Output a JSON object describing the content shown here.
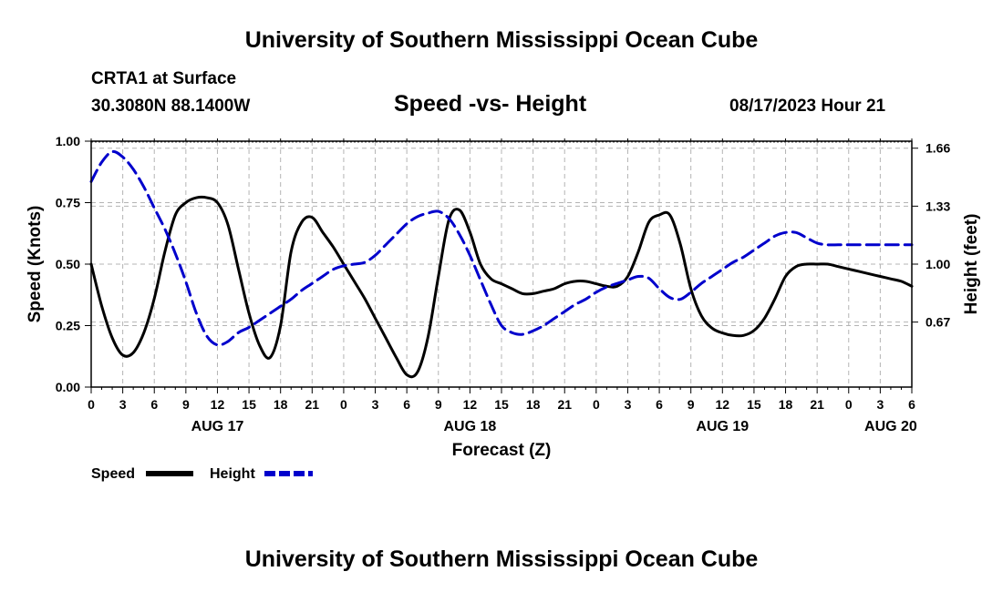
{
  "header": {
    "title": "University of Southern Mississippi Ocean Cube",
    "station": "CRTA1 at Surface",
    "coords": "30.3080N  88.1400W",
    "chart_title": "Speed -vs- Height",
    "datetime": "08/17/2023 Hour 21"
  },
  "footer": {
    "title": "University of Southern Mississippi Ocean Cube"
  },
  "legend": {
    "speed_label": "Speed",
    "height_label": "Height"
  },
  "colors": {
    "speed": "#000000",
    "height": "#0000cc",
    "grid": "#b4b4b4"
  },
  "chart_data": {
    "type": "line",
    "title": "Speed -vs- Height",
    "xlabel": "Forecast (Z)",
    "ylabel": "Speed (Knots)",
    "y2label": "Height (feet)",
    "x_range_hours": [
      0,
      78
    ],
    "x_ticks": [
      {
        "h": 0,
        "label": "0"
      },
      {
        "h": 3,
        "label": "3"
      },
      {
        "h": 6,
        "label": "6"
      },
      {
        "h": 9,
        "label": "9"
      },
      {
        "h": 12,
        "label": "12"
      },
      {
        "h": 15,
        "label": "15"
      },
      {
        "h": 18,
        "label": "18"
      },
      {
        "h": 21,
        "label": "21"
      },
      {
        "h": 24,
        "label": "0"
      },
      {
        "h": 27,
        "label": "3"
      },
      {
        "h": 30,
        "label": "6"
      },
      {
        "h": 33,
        "label": "9"
      },
      {
        "h": 36,
        "label": "12"
      },
      {
        "h": 39,
        "label": "15"
      },
      {
        "h": 42,
        "label": "18"
      },
      {
        "h": 45,
        "label": "21"
      },
      {
        "h": 48,
        "label": "0"
      },
      {
        "h": 51,
        "label": "3"
      },
      {
        "h": 54,
        "label": "6"
      },
      {
        "h": 57,
        "label": "9"
      },
      {
        "h": 60,
        "label": "12"
      },
      {
        "h": 63,
        "label": "15"
      },
      {
        "h": 66,
        "label": "18"
      },
      {
        "h": 69,
        "label": "21"
      },
      {
        "h": 72,
        "label": "0"
      },
      {
        "h": 75,
        "label": "3"
      },
      {
        "h": 78,
        "label": "6"
      }
    ],
    "date_labels": [
      {
        "h": 12,
        "label": "AUG 17"
      },
      {
        "h": 36,
        "label": "AUG 18"
      },
      {
        "h": 60,
        "label": "AUG 19"
      },
      {
        "h": 76,
        "label": "AUG 20"
      }
    ],
    "ylim": [
      0,
      1
    ],
    "y_ticks": [
      {
        "v": 0,
        "label": "0.00"
      },
      {
        "v": 0.25,
        "label": "0.25"
      },
      {
        "v": 0.5,
        "label": "0.50"
      },
      {
        "v": 0.75,
        "label": "0.75"
      },
      {
        "v": 1,
        "label": "1.00"
      }
    ],
    "y2lim": [
      0.3,
      1.7
    ],
    "y2_ticks": [
      {
        "v": 0.67,
        "label": "0.67"
      },
      {
        "v": 1.0,
        "label": "1.00"
      },
      {
        "v": 1.33,
        "label": "1.33"
      },
      {
        "v": 1.66,
        "label": "1.66"
      }
    ],
    "series": [
      {
        "name": "Speed",
        "axis": "left",
        "style": "solid",
        "x": [
          0,
          1,
          2,
          3,
          4,
          5,
          6,
          7,
          8,
          9,
          10,
          11,
          12,
          13,
          14,
          15,
          16,
          17,
          18,
          19,
          20,
          21,
          22,
          23,
          24,
          25,
          26,
          27,
          28,
          29,
          30,
          31,
          32,
          33,
          34,
          35,
          36,
          37,
          38,
          39,
          40,
          41,
          42,
          43,
          44,
          45,
          46,
          47,
          48,
          49,
          50,
          51,
          52,
          53,
          54,
          55,
          56,
          57,
          58,
          59,
          60,
          61,
          62,
          63,
          64,
          65,
          66,
          67,
          68,
          69,
          70,
          71,
          72,
          73,
          74,
          75,
          76,
          77,
          78
        ],
        "values": [
          0.5,
          0.33,
          0.2,
          0.13,
          0.14,
          0.22,
          0.36,
          0.55,
          0.7,
          0.75,
          0.77,
          0.77,
          0.75,
          0.66,
          0.48,
          0.3,
          0.17,
          0.12,
          0.25,
          0.55,
          0.67,
          0.69,
          0.63,
          0.57,
          0.5,
          0.43,
          0.36,
          0.28,
          0.2,
          0.12,
          0.05,
          0.06,
          0.2,
          0.45,
          0.68,
          0.72,
          0.63,
          0.5,
          0.44,
          0.42,
          0.4,
          0.38,
          0.38,
          0.39,
          0.4,
          0.42,
          0.43,
          0.43,
          0.42,
          0.41,
          0.41,
          0.45,
          0.55,
          0.67,
          0.7,
          0.7,
          0.58,
          0.4,
          0.29,
          0.24,
          0.22,
          0.21,
          0.21,
          0.23,
          0.28,
          0.36,
          0.45,
          0.49,
          0.5,
          0.5,
          0.5,
          0.49,
          0.48,
          0.47,
          0.46,
          0.45,
          0.44,
          0.43,
          0.41
        ]
      },
      {
        "name": "Height",
        "axis": "right",
        "style": "dashed",
        "x": [
          0,
          1,
          2,
          3,
          4,
          5,
          6,
          7,
          8,
          9,
          10,
          11,
          12,
          13,
          14,
          15,
          16,
          17,
          18,
          19,
          20,
          21,
          22,
          23,
          24,
          25,
          26,
          27,
          28,
          29,
          30,
          31,
          32,
          33,
          34,
          35,
          36,
          37,
          38,
          39,
          40,
          41,
          42,
          43,
          44,
          45,
          46,
          47,
          48,
          49,
          50,
          51,
          52,
          53,
          54,
          55,
          56,
          57,
          58,
          59,
          60,
          61,
          62,
          63,
          64,
          65,
          66,
          67,
          68,
          69,
          70,
          71,
          72,
          73,
          74,
          75,
          76,
          77,
          78
        ],
        "values": [
          1.47,
          1.58,
          1.64,
          1.61,
          1.54,
          1.44,
          1.32,
          1.2,
          1.06,
          0.9,
          0.72,
          0.59,
          0.54,
          0.56,
          0.61,
          0.64,
          0.68,
          0.72,
          0.76,
          0.8,
          0.85,
          0.89,
          0.93,
          0.97,
          0.99,
          1.0,
          1.01,
          1.05,
          1.11,
          1.17,
          1.23,
          1.27,
          1.29,
          1.3,
          1.26,
          1.17,
          1.05,
          0.91,
          0.77,
          0.65,
          0.61,
          0.6,
          0.62,
          0.65,
          0.69,
          0.73,
          0.77,
          0.8,
          0.84,
          0.87,
          0.89,
          0.91,
          0.93,
          0.92,
          0.86,
          0.81,
          0.8,
          0.84,
          0.89,
          0.93,
          0.97,
          1.01,
          1.04,
          1.08,
          1.12,
          1.16,
          1.18,
          1.18,
          1.15,
          1.12,
          1.11,
          1.11,
          1.11,
          1.11,
          1.11,
          1.11,
          1.11,
          1.11,
          1.11
        ]
      }
    ]
  }
}
